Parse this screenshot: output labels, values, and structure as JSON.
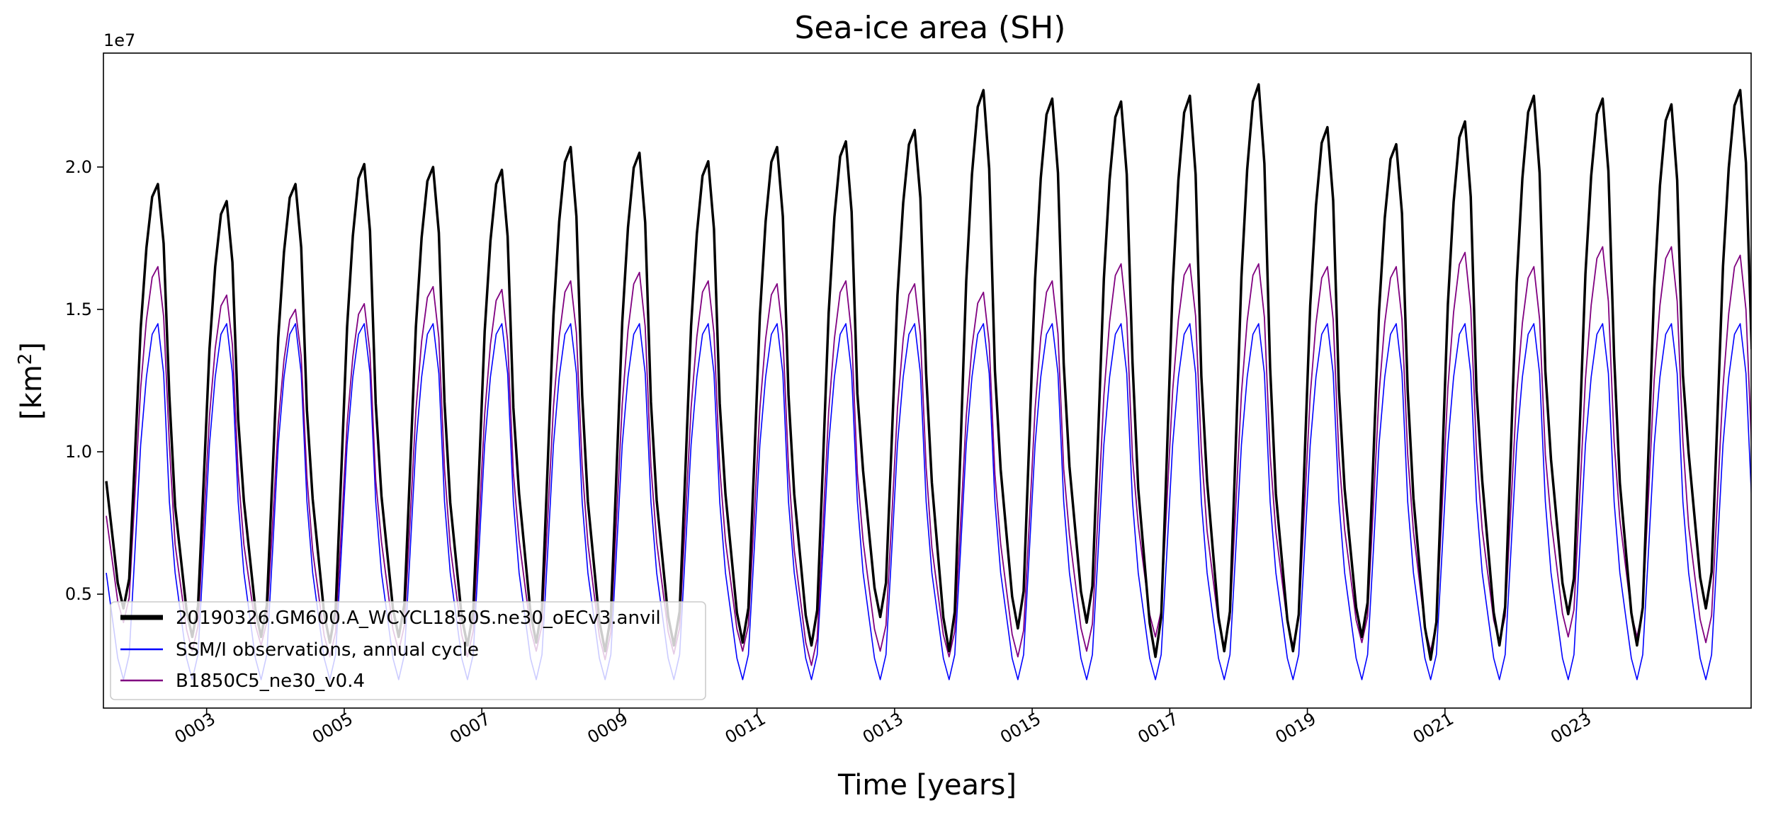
{
  "chart_data": {
    "type": "line",
    "title": "Sea-ice area (SH)",
    "xlabel": "Time [years]",
    "ylabel": "[km²]",
    "ylabel_base": "[km",
    "ylabel_sup": "2",
    "ylabel_close": "]",
    "y_offset_label": "1e7",
    "xlim": [
      1.0,
      24.95
    ],
    "ylim": [
      1000000.0,
      24000000.0
    ],
    "yticks": [
      5000000.0,
      10000000.0,
      15000000.0,
      20000000.0
    ],
    "ytick_labels": [
      "0.5",
      "1.0",
      "1.5",
      "2.0"
    ],
    "xticks": [
      2.5,
      4.5,
      6.5,
      8.5,
      10.5,
      12.5,
      14.5,
      16.5,
      18.5,
      20.5,
      22.5
    ],
    "xtick_labels": [
      "0003",
      "0005",
      "0007",
      "0009",
      "0011",
      "0013",
      "0015",
      "0017",
      "0019",
      "0021",
      "0023"
    ],
    "grid": false,
    "legend_position": "lower-left",
    "monthly_shape": [
      0.3,
      0.18,
      0.06,
      0.0,
      0.07,
      0.36,
      0.66,
      0.85,
      0.97,
      1.0,
      0.86,
      0.5
    ],
    "series": [
      {
        "name": "20190326.GM600.A_WCYCL1850S.ne30_oECv3.anvil",
        "color": "#000000",
        "width": 3.5,
        "annual_max": [
          1.94,
          1.88,
          1.94,
          2.01,
          2.0,
          1.99,
          2.07,
          2.05,
          2.02,
          2.07,
          2.09,
          2.13,
          2.27,
          2.24,
          2.23,
          2.25,
          2.29,
          2.14,
          2.08,
          2.16,
          2.25,
          2.24,
          2.22,
          2.27
        ],
        "annual_min": [
          0.45,
          0.35,
          0.35,
          0.33,
          0.35,
          0.32,
          0.33,
          0.3,
          0.32,
          0.33,
          0.32,
          0.42,
          0.3,
          0.38,
          0.4,
          0.28,
          0.3,
          0.3,
          0.35,
          0.27,
          0.32,
          0.43,
          0.32,
          0.45
        ]
      },
      {
        "name": "SSM/I observations, annual cycle",
        "color": "#0000ff",
        "width": 1.6,
        "annual_max": [
          1.45,
          1.45,
          1.45,
          1.45,
          1.45,
          1.45,
          1.45,
          1.45,
          1.45,
          1.45,
          1.45,
          1.45,
          1.45,
          1.45,
          1.45,
          1.45,
          1.45,
          1.45,
          1.45,
          1.45,
          1.45,
          1.45,
          1.45,
          1.45
        ],
        "annual_min": [
          0.2,
          0.2,
          0.2,
          0.2,
          0.2,
          0.2,
          0.2,
          0.2,
          0.2,
          0.2,
          0.2,
          0.2,
          0.2,
          0.2,
          0.2,
          0.2,
          0.2,
          0.2,
          0.2,
          0.2,
          0.2,
          0.2,
          0.2,
          0.2
        ]
      },
      {
        "name": "B1850C5_ne30_v0.4",
        "color": "#800080",
        "width": 1.8,
        "annual_max": [
          1.65,
          1.55,
          1.5,
          1.52,
          1.58,
          1.57,
          1.6,
          1.63,
          1.6,
          1.59,
          1.6,
          1.59,
          1.56,
          1.6,
          1.66,
          1.66,
          1.66,
          1.65,
          1.65,
          1.7,
          1.65,
          1.72,
          1.72,
          1.69
        ],
        "annual_min": [
          0.4,
          0.3,
          0.32,
          0.28,
          0.3,
          0.28,
          0.3,
          0.27,
          0.29,
          0.3,
          0.25,
          0.3,
          0.28,
          0.28,
          0.3,
          0.35,
          0.32,
          0.32,
          0.33,
          0.3,
          0.33,
          0.35,
          0.35,
          0.33
        ]
      }
    ]
  }
}
